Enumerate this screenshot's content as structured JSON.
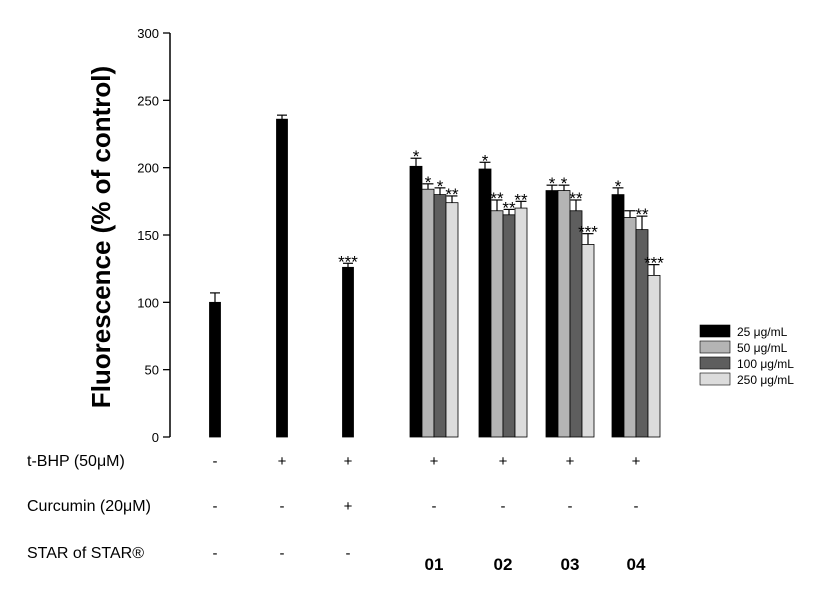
{
  "chart_data": {
    "type": "bar",
    "title": "",
    "ylabel": "Fluorescence (% of control)",
    "ylim": [
      0,
      300
    ],
    "yticks": [
      "0",
      "50",
      "100",
      "150",
      "200",
      "250",
      "300"
    ],
    "legend": {
      "placement": "right",
      "entries": [
        {
          "label": "25 μg/mL",
          "color": "#000000"
        },
        {
          "label": "50  μg/mL",
          "color": "#b4b4b4"
        },
        {
          "label": "100 μg/mL",
          "color": "#5e5e5e"
        },
        {
          "label": "250 μg/mL",
          "color": "#dcdcdc"
        }
      ]
    },
    "single_bars": [
      {
        "value": 100,
        "error": 7,
        "sig": "",
        "color": "#000000"
      },
      {
        "value": 236,
        "error": 3,
        "sig": "",
        "color": "#000000"
      },
      {
        "value": 126,
        "error": 3,
        "sig": "***",
        "color": "#000000"
      }
    ],
    "groups": [
      {
        "label": "01",
        "values": [
          201,
          184,
          180,
          174
        ],
        "errors": [
          6,
          4,
          5,
          5
        ],
        "sig": [
          "*",
          "*",
          "*",
          "**"
        ]
      },
      {
        "label": "02",
        "values": [
          199,
          168,
          165,
          170
        ],
        "errors": [
          5,
          8,
          4,
          5
        ],
        "sig": [
          "*",
          "**",
          "**",
          "**"
        ]
      },
      {
        "label": "03",
        "values": [
          183,
          183,
          168,
          143
        ],
        "errors": [
          4,
          4,
          8,
          8
        ],
        "sig": [
          "*",
          "*",
          "**",
          "***"
        ]
      },
      {
        "label": "04",
        "values": [
          180,
          163,
          154,
          120
        ],
        "errors": [
          5,
          5,
          10,
          8
        ],
        "sig": [
          "*",
          "",
          "**",
          "***"
        ]
      }
    ],
    "rows": [
      {
        "label": "t-BHP (50μM)",
        "signs": [
          "-",
          "+",
          "+",
          "+",
          "+",
          "+",
          "+"
        ]
      },
      {
        "label": "Curcumin (20μM)",
        "signs": [
          "-",
          "-",
          "+",
          "-",
          "-",
          "-",
          "-"
        ]
      },
      {
        "label": "STAR of STAR®",
        "signs": [
          "-",
          "-",
          "-",
          "01",
          "02",
          "03",
          "04"
        ]
      }
    ]
  }
}
